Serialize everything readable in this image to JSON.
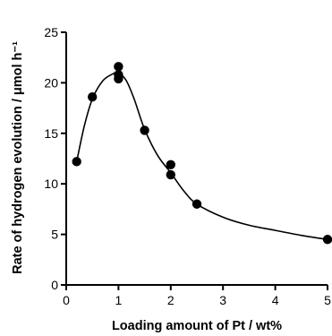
{
  "chart_data": {
    "type": "scatter",
    "title": "",
    "xlabel": "Loading amount of Pt / wt%",
    "ylabel": "Rate of hydrogen evolution / μmol h⁻¹",
    "xlim": [
      0,
      5
    ],
    "ylim": [
      0,
      25
    ],
    "xticks": [
      "0",
      "1",
      "2",
      "3",
      "4",
      "5"
    ],
    "yticks": [
      "0",
      "5",
      "10",
      "15",
      "20",
      "25"
    ],
    "grid": false,
    "legend": "none",
    "series": [
      {
        "points": [
          {
            "x": 0.2,
            "y": 12.2
          },
          {
            "x": 0.5,
            "y": 18.6
          },
          {
            "x": 1.0,
            "y": 21.6
          },
          {
            "x": 1.0,
            "y": 20.8
          },
          {
            "x": 1.0,
            "y": 20.4
          },
          {
            "x": 1.5,
            "y": 15.3
          },
          {
            "x": 2.0,
            "y": 11.9
          },
          {
            "x": 2.0,
            "y": 10.9
          },
          {
            "x": 2.5,
            "y": 8.0
          },
          {
            "x": 5.0,
            "y": 4.5
          }
        ]
      }
    ],
    "fit_curve": [
      {
        "x": 0.2,
        "y": 12.2
      },
      {
        "x": 0.35,
        "y": 15.8
      },
      {
        "x": 0.5,
        "y": 18.4
      },
      {
        "x": 0.7,
        "y": 20.2
      },
      {
        "x": 0.9,
        "y": 20.9
      },
      {
        "x": 1.0,
        "y": 21.0
      },
      {
        "x": 1.15,
        "y": 20.2
      },
      {
        "x": 1.3,
        "y": 18.4
      },
      {
        "x": 1.5,
        "y": 15.4
      },
      {
        "x": 1.75,
        "y": 12.8
      },
      {
        "x": 2.0,
        "y": 11.1
      },
      {
        "x": 2.25,
        "y": 9.3
      },
      {
        "x": 2.5,
        "y": 8.0
      },
      {
        "x": 3.0,
        "y": 6.7
      },
      {
        "x": 3.5,
        "y": 5.9
      },
      {
        "x": 4.0,
        "y": 5.4
      },
      {
        "x": 4.5,
        "y": 4.9
      },
      {
        "x": 5.0,
        "y": 4.5
      }
    ]
  }
}
